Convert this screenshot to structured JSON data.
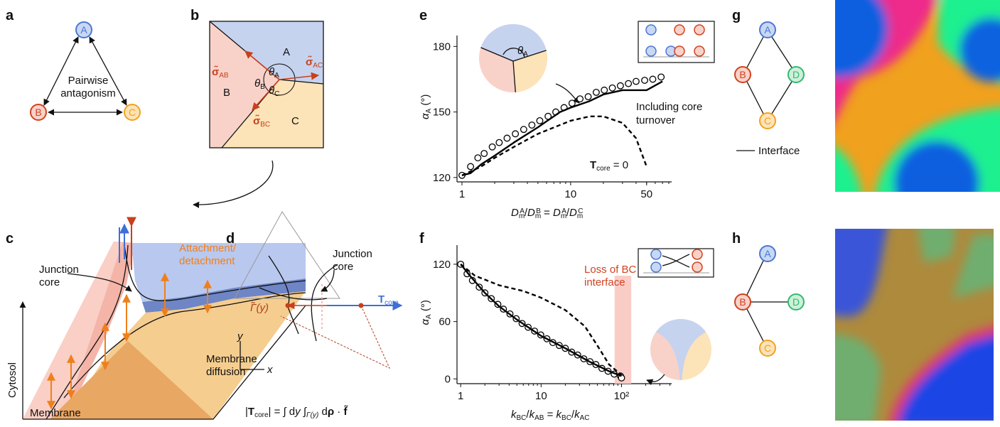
{
  "panel_labels": [
    "a",
    "b",
    "c",
    "d",
    "e",
    "f",
    "g",
    "h"
  ],
  "panel_a": {
    "nodes": [
      "A",
      "B",
      "C"
    ],
    "label": [
      "Pairwise",
      "antagonism"
    ]
  },
  "panel_b": {
    "regions": [
      "A",
      "B",
      "C"
    ],
    "tensions": [
      [
        {
          "text": "σ̃",
          "style": "bold"
        },
        {
          "text": "AB",
          "style": "sub"
        }
      ],
      [
        {
          "text": "σ̃",
          "style": "bold"
        },
        {
          "text": "AC",
          "style": "sub"
        }
      ],
      [
        {
          "text": "σ̃",
          "style": "bold"
        },
        {
          "text": "BC",
          "style": "sub"
        }
      ]
    ],
    "angles": [
      [
        {
          "text": "θ",
          "style": "italic"
        },
        {
          "text": "A",
          "style": "sub"
        }
      ],
      [
        {
          "text": "θ",
          "style": "italic"
        },
        {
          "text": "B",
          "style": "sub"
        }
      ],
      [
        {
          "text": "θ",
          "style": "italic"
        },
        {
          "text": "C",
          "style": "sub"
        }
      ]
    ]
  },
  "panel_c": {
    "attachment": [
      "Attachment/",
      "detachment"
    ],
    "junction": [
      "Junction",
      "core"
    ],
    "diffusion": [
      "Membrane",
      "diffusion"
    ],
    "cytosol": "Cytosol",
    "membrane": "Membrane"
  },
  "panel_d": {
    "junction": [
      "Junction",
      "core"
    ],
    "tcore": [
      {
        "text": "T",
        "style": "bold"
      },
      {
        "text": "core",
        "style": "sub"
      }
    ],
    "gamma": [
      {
        "text": "Γ̃(y)",
        "style": "italic"
      }
    ],
    "y_axis": "y",
    "x_axis": "x",
    "formula": [
      {
        "text": "|",
        "style": "normal"
      },
      {
        "text": "T",
        "style": "bold"
      },
      {
        "text": "core",
        "style": "sub"
      },
      {
        "text": "| = ∫ d",
        "style": "normal"
      },
      {
        "text": "y",
        "style": "italic"
      },
      {
        "text": " ∫",
        "style": "normal"
      },
      {
        "text": "Γ(y)",
        "style": "subitalic"
      },
      {
        "text": " d",
        "style": "normal"
      },
      {
        "text": "ρ",
        "style": "bold"
      },
      {
        "text": " · ",
        "style": "normal"
      },
      {
        "text": "f̃",
        "style": "bold"
      }
    ]
  },
  "panel_g": {
    "nodes": [
      "A",
      "B",
      "C",
      "D"
    ],
    "legend": "Interface"
  },
  "panel_h": {
    "nodes": [
      "A",
      "B",
      "C",
      "D"
    ]
  },
  "chart_data": [
    {
      "type": "line",
      "xscale": "log",
      "xlim": [
        0.9,
        85
      ],
      "ylim": [
        118,
        185
      ],
      "xticks": [
        1,
        10,
        50
      ],
      "yticks": [
        120,
        150,
        180
      ],
      "ylabel": [
        {
          "text": "α",
          "style": "italic"
        },
        {
          "text": "A",
          "style": "sub"
        },
        {
          "text": " (°)",
          "style": "normal"
        }
      ],
      "xlabel": [
        {
          "text": "D",
          "style": "italic"
        },
        {
          "text": "m",
          "style": "sub"
        },
        {
          "text": "A",
          "style": "sup"
        },
        {
          "text": "/",
          "style": "normal"
        },
        {
          "text": "D",
          "style": "italic"
        },
        {
          "text": "m",
          "style": "sub"
        },
        {
          "text": "B",
          "style": "sup"
        },
        {
          "text": " = ",
          "style": "normal"
        },
        {
          "text": "D",
          "style": "italic"
        },
        {
          "text": "m",
          "style": "sub"
        },
        {
          "text": "A",
          "style": "sup"
        },
        {
          "text": "/",
          "style": "normal"
        },
        {
          "text": "D",
          "style": "italic"
        },
        {
          "text": "m",
          "style": "sub"
        },
        {
          "text": "C",
          "style": "sup"
        }
      ],
      "series": [
        {
          "style": "markers",
          "color": "#000000",
          "x": [
            1,
            1.2,
            1.4,
            1.6,
            1.9,
            2.2,
            2.6,
            3.1,
            3.7,
            4.4,
            5.2,
            6.2,
            7.3,
            8.7,
            10.3,
            12.2,
            14.5,
            17.2,
            20.4,
            24.2,
            28.7,
            34,
            40,
            48,
            57,
            68
          ],
          "values": [
            121,
            125,
            129,
            131,
            134,
            136,
            138,
            140,
            142,
            144,
            146,
            148,
            150,
            152,
            154,
            156,
            157,
            159,
            160,
            161,
            162,
            163,
            164,
            164.5,
            165,
            166
          ]
        },
        {
          "style": "solid",
          "color": "#000000",
          "x": [
            1,
            1.2,
            1.5,
            2,
            3,
            5,
            8,
            10,
            15,
            20,
            30,
            50,
            70
          ],
          "values": [
            121,
            122,
            126,
            130,
            136,
            143,
            150,
            152,
            155,
            158,
            160,
            160,
            164
          ]
        },
        {
          "style": "dashed",
          "color": "#000000",
          "x": [
            1,
            1.5,
            2,
            3,
            5,
            10,
            15,
            20,
            30,
            40,
            50
          ],
          "values": [
            121,
            125,
            129,
            134,
            140,
            146,
            148,
            148,
            145,
            138,
            125
          ]
        }
      ],
      "annotations": [
        [
          {
            "text": "Including core",
            "style": "normal"
          }
        ],
        [
          {
            "text": "turnover",
            "style": "normal"
          }
        ],
        [
          {
            "text": "T",
            "style": "bold"
          },
          {
            "text": "core",
            "style": "sub"
          },
          {
            "text": " = 0",
            "style": "normal"
          }
        ],
        [
          {
            "text": "θ",
            "style": "italic"
          },
          {
            "text": "A",
            "style": "sub"
          }
        ]
      ]
    },
    {
      "type": "line",
      "xscale": "log",
      "xlim": [
        0.9,
        420
      ],
      "ylim": [
        -5,
        140
      ],
      "xticks": [
        1,
        10,
        {
          "value": 100,
          "label": "10²"
        }
      ],
      "yticks": [
        0,
        60,
        120
      ],
      "ylabel": [
        {
          "text": "α",
          "style": "italic"
        },
        {
          "text": "A",
          "style": "sub"
        },
        {
          "text": " (°)",
          "style": "normal"
        }
      ],
      "xlabel": [
        {
          "text": "k",
          "style": "italic"
        },
        {
          "text": "BC",
          "style": "sub"
        },
        {
          "text": "/",
          "style": "normal"
        },
        {
          "text": "k",
          "style": "italic"
        },
        {
          "text": "AB",
          "style": "sub"
        },
        {
          "text": " = ",
          "style": "normal"
        },
        {
          "text": "k",
          "style": "italic"
        },
        {
          "text": "BC",
          "style": "sub"
        },
        {
          "text": "/",
          "style": "normal"
        },
        {
          "text": "k",
          "style": "italic"
        },
        {
          "text": "AC",
          "style": "sub"
        }
      ],
      "shaded_region": {
        "xrange": [
          82,
          132
        ],
        "top": 108,
        "color": "#f9cdc6"
      },
      "series": [
        {
          "style": "markers",
          "color": "#000000",
          "x": [
            1,
            1.2,
            1.4,
            1.7,
            2,
            2.4,
            2.9,
            3.4,
            4.1,
            4.9,
            5.8,
            6.9,
            8.3,
            9.9,
            11.8,
            14,
            16.8,
            20,
            24,
            28.5,
            34,
            40.6,
            48,
            57,
            68,
            81,
            97,
            100
          ],
          "values": [
            120,
            110,
            103,
            96,
            90,
            84,
            78,
            73,
            68,
            63,
            58,
            54,
            50,
            46,
            42,
            38,
            35,
            32,
            28,
            25,
            21,
            18,
            15,
            11,
            8,
            5,
            3,
            1
          ]
        },
        {
          "style": "solid",
          "color": "#000000",
          "x": [
            1,
            1.3,
            2,
            3,
            5,
            10,
            20,
            40,
            70,
            100
          ],
          "values": [
            120,
            108,
            90,
            76,
            62,
            45,
            32,
            18,
            8,
            3
          ]
        },
        {
          "style": "dashed",
          "color": "#000000",
          "x": [
            1,
            1.5,
            3,
            6,
            10,
            20,
            35,
            50,
            70,
            100
          ],
          "values": [
            120,
            108,
            98,
            92,
            85,
            72,
            55,
            35,
            15,
            4
          ]
        }
      ],
      "annotations": [
        [
          {
            "text": "Loss of BC",
            "style": "normal"
          }
        ],
        [
          {
            "text": "interface",
            "style": "normal"
          }
        ]
      ]
    }
  ]
}
